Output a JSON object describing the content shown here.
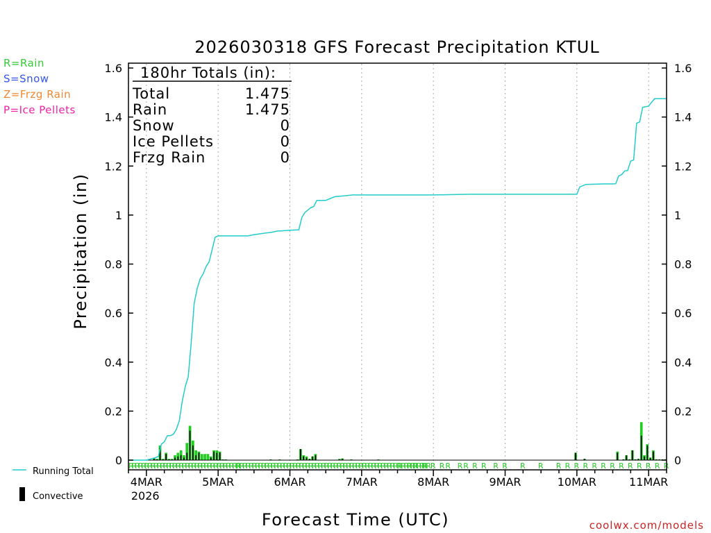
{
  "chart_data": {
    "type": "bar",
    "title": "2026030318 GFS Forecast Precipitation KTUL",
    "xlabel": "Forecast Time (UTC)",
    "ylabel": "Precipitation (in)",
    "ylim": [
      0,
      1.6
    ],
    "yticks": [
      "0",
      "0.2",
      "0.4",
      "0.6",
      "0.8",
      "1",
      "1.2",
      "1.4",
      "1.6"
    ],
    "x_unit": "forecast hour",
    "xlim": [
      0,
      180
    ],
    "xticks": [
      {
        "hour": 6,
        "label": "4MAR",
        "sublabel": "2026"
      },
      {
        "hour": 30,
        "label": "5MAR"
      },
      {
        "hour": 54,
        "label": "6MAR"
      },
      {
        "hour": 78,
        "label": "7MAR"
      },
      {
        "hour": 102,
        "label": "8MAR"
      },
      {
        "hour": 126,
        "label": "9MAR"
      },
      {
        "hour": 150,
        "label": "10MAR"
      },
      {
        "hour": 174,
        "label": "11MAR"
      }
    ],
    "type_legend": [
      {
        "text": "R=Rain",
        "color": "#33cc33"
      },
      {
        "text": "S=Snow",
        "color": "#3355ee"
      },
      {
        "text": "Z=Frzg Rain",
        "color": "#ee8833"
      },
      {
        "text": "P=Ice Pellets",
        "color": "#ee22aa"
      }
    ],
    "series_legend": [
      {
        "name": "Running Total",
        "color": "#22cccc"
      },
      {
        "name": "Convective",
        "color": "#000000"
      }
    ],
    "totals": {
      "header": "180hr Totals (in):",
      "rows": [
        {
          "label": "Total",
          "value": "1.475"
        },
        {
          "label": "Rain",
          "value": "1.475"
        },
        {
          "label": "Snow",
          "value": "0"
        },
        {
          "label": "Ice Pellets",
          "value": "0"
        },
        {
          "label": "Frzg Rain",
          "value": "0"
        }
      ]
    },
    "precip_type_marker": "R",
    "bars_hourly": {
      "hours": [
        9,
        10,
        11,
        12,
        13,
        14,
        15,
        16,
        17,
        18,
        19,
        20,
        21,
        22,
        23,
        24,
        25,
        26,
        27,
        28,
        29,
        30,
        31,
        32,
        33,
        48,
        51,
        57,
        58,
        59,
        60,
        61,
        62,
        63,
        71,
        72,
        75,
        84,
        150,
        153,
        164,
        166,
        167,
        168,
        169,
        170,
        171,
        172,
        173,
        174,
        175,
        176,
        177,
        178,
        179,
        180
      ],
      "total": [
        0.01,
        0.005,
        0.06,
        0.005,
        0.03,
        0.005,
        0.005,
        0.02,
        0.03,
        0.04,
        0.02,
        0.07,
        0.14,
        0.08,
        0.04,
        0.035,
        0.025,
        0.025,
        0.025,
        0.015,
        0.04,
        0.04,
        0.035,
        0.003,
        0.003,
        0.003,
        0.003,
        0.003,
        0.045,
        0.02,
        0.015,
        0.005,
        0.015,
        0.025,
        0.005,
        0.007,
        0.003,
        0.003,
        0.03,
        0.005,
        0.035,
        0.003,
        0.02,
        0.003,
        0.04,
        0.003,
        0.005,
        0.155,
        0.02,
        0.065,
        0.01,
        0.04,
        0.003,
        0.003,
        0.003,
        0.003
      ],
      "convective": [
        0.005,
        0.003,
        0.05,
        0.003,
        0.025,
        0.003,
        0.003,
        0.01,
        0.015,
        0.02,
        0.01,
        0.03,
        0.12,
        0.06,
        0.02,
        0.03,
        0.0,
        0.0,
        0.0,
        0.01,
        0.035,
        0.03,
        0.03,
        0.002,
        0.002,
        0.002,
        0.002,
        0.002,
        0.045,
        0.015,
        0.01,
        0.005,
        0.015,
        0.02,
        0.003,
        0.005,
        0.002,
        0.002,
        0.03,
        0.005,
        0.03,
        0.003,
        0.02,
        0.003,
        0.04,
        0.003,
        0.005,
        0.1,
        0.015,
        0.06,
        0.01,
        0.035,
        0.003,
        0.003,
        0.003,
        0.003
      ]
    },
    "running_total": {
      "hours": [
        0,
        6,
        9,
        10,
        11,
        12,
        13,
        14,
        15,
        16,
        17,
        18,
        19,
        20,
        21,
        22,
        23,
        24,
        25,
        26,
        27,
        28,
        29,
        30,
        31,
        32,
        33,
        36,
        40,
        42,
        48,
        50,
        51,
        54,
        57,
        58,
        59,
        60,
        61,
        62,
        63,
        66,
        69,
        72,
        75,
        78,
        90,
        102,
        114,
        126,
        138,
        147,
        150,
        151,
        153,
        156,
        159,
        162,
        163,
        164,
        165,
        166,
        167,
        168,
        169,
        170,
        171,
        172,
        173,
        174,
        175,
        176,
        177,
        178,
        179,
        180
      ],
      "values": [
        0,
        0,
        0.01,
        0.015,
        0.065,
        0.075,
        0.1,
        0.1,
        0.105,
        0.125,
        0.16,
        0.24,
        0.3,
        0.34,
        0.48,
        0.64,
        0.7,
        0.74,
        0.76,
        0.79,
        0.81,
        0.86,
        0.91,
        0.915,
        0.915,
        0.915,
        0.915,
        0.915,
        0.915,
        0.92,
        0.93,
        0.935,
        0.935,
        0.938,
        0.94,
        0.99,
        1.01,
        1.02,
        1.03,
        1.035,
        1.06,
        1.06,
        1.075,
        1.078,
        1.082,
        1.082,
        1.082,
        1.082,
        1.085,
        1.085,
        1.085,
        1.085,
        1.085,
        1.115,
        1.125,
        1.126,
        1.127,
        1.127,
        1.128,
        1.16,
        1.165,
        1.18,
        1.182,
        1.22,
        1.225,
        1.375,
        1.38,
        1.44,
        1.442,
        1.445,
        1.46,
        1.475,
        1.475,
        1.475,
        1.475,
        1.475
      ]
    },
    "rain_markers_hours": [
      [
        0,
        36
      ],
      [
        36,
        90
      ],
      [
        90,
        100
      ],
      [
        93,
        94
      ],
      [
        95,
        96
      ],
      [
        98,
        99
      ],
      [
        101,
        102
      ],
      [
        104,
        105
      ],
      [
        106,
        107
      ],
      [
        110,
        111
      ],
      [
        112,
        113
      ],
      [
        115,
        116
      ],
      [
        118,
        119
      ],
      [
        122,
        123
      ],
      [
        125,
        126
      ],
      [
        131,
        132
      ],
      [
        137,
        138
      ],
      [
        143,
        144
      ],
      [
        146,
        147
      ],
      [
        149,
        150
      ],
      [
        152,
        153
      ],
      [
        155,
        156
      ],
      [
        158,
        159
      ],
      [
        161,
        162
      ],
      [
        164,
        165
      ],
      [
        167,
        168
      ],
      [
        170,
        171
      ],
      [
        173,
        174
      ],
      [
        176,
        177
      ],
      [
        179,
        180
      ]
    ]
  },
  "footer": {
    "source": "coolwx.com/models"
  }
}
